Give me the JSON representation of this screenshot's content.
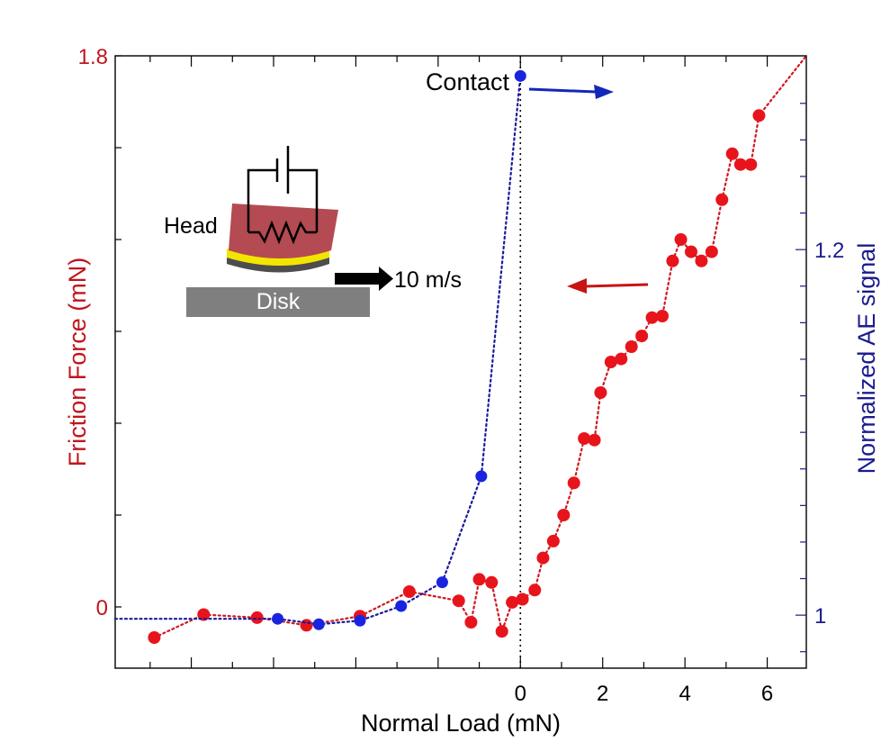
{
  "colors": {
    "friction": "#e8141c",
    "friction_line": "#cc1a22",
    "ae": "#1a24e0",
    "ae_line": "#1a1a9a",
    "left_axis_text": "#c0161d",
    "right_axis_text": "#1b1b8f",
    "head_body": "#b44a52",
    "head_coat": "#f2e600",
    "disk": "#7f7f7f",
    "arrow_blue": "#1228b8",
    "arrow_red": "#c81414"
  },
  "chart_data": {
    "type": "scatter",
    "xlabel": "Normal Load (mN)",
    "ylabel_left": "Friction Force (mN)",
    "ylabel_right": "Normalized AE signal",
    "x_ticks": [
      "0",
      "2",
      "4",
      "6"
    ],
    "x_tick_values": [
      0,
      2,
      4,
      6
    ],
    "y_left_ticks": [
      "0",
      "1.8"
    ],
    "y_left_tick_values": [
      0,
      1.8
    ],
    "y_right_ticks": [
      "1",
      "1.2"
    ],
    "y_right_tick_values": [
      1,
      1.2
    ],
    "xlim": [
      -9.85,
      6.95
    ],
    "ylim_left": [
      -0.2,
      1.8
    ],
    "ylim_right": [
      0.971,
      1.306
    ],
    "grid": false,
    "series": [
      {
        "axis": "left",
        "style": "dotted-markers",
        "points": [
          [
            -8.9,
            -0.1
          ],
          [
            -7.7,
            -0.025
          ],
          [
            -6.4,
            -0.035
          ],
          [
            -5.2,
            -0.06
          ],
          [
            -3.9,
            -0.03
          ],
          [
            -2.7,
            0.05
          ],
          [
            -1.5,
            0.02
          ],
          [
            -1.2,
            -0.05
          ],
          [
            -1.0,
            0.09
          ],
          [
            -0.7,
            0.08
          ],
          [
            -0.45,
            -0.08
          ],
          [
            -0.2,
            0.015
          ],
          [
            0.05,
            0.025
          ],
          [
            0.35,
            0.055
          ],
          [
            0.55,
            0.16
          ],
          [
            0.8,
            0.215
          ],
          [
            1.05,
            0.3
          ],
          [
            1.3,
            0.405
          ],
          [
            1.55,
            0.55
          ],
          [
            1.8,
            0.545
          ],
          [
            1.95,
            0.7
          ],
          [
            2.2,
            0.8
          ],
          [
            2.45,
            0.81
          ],
          [
            2.7,
            0.85
          ],
          [
            2.95,
            0.885
          ],
          [
            3.2,
            0.945
          ],
          [
            3.45,
            0.95
          ],
          [
            3.7,
            1.13
          ],
          [
            3.9,
            1.2
          ],
          [
            4.15,
            1.16
          ],
          [
            4.4,
            1.13
          ],
          [
            4.65,
            1.16
          ],
          [
            4.9,
            1.33
          ],
          [
            5.15,
            1.48
          ],
          [
            5.35,
            1.445
          ],
          [
            5.6,
            1.445
          ],
          [
            5.8,
            1.605
          ],
          [
            6.95,
            1.8
          ]
        ]
      },
      {
        "axis": "right",
        "style": "dotted-markers",
        "points": [
          [
            -9.85,
            0.998
          ],
          [
            -5.9,
            0.998
          ],
          [
            -4.9,
            0.995
          ],
          [
            -3.9,
            0.997
          ],
          [
            -2.9,
            1.005
          ],
          [
            -1.9,
            1.018
          ],
          [
            -0.95,
            1.076
          ],
          [
            0.0,
            1.295
          ]
        ]
      }
    ],
    "contact_x": 0,
    "annotations": {
      "contact": "Contact",
      "head": "Head",
      "disk": "Disk",
      "speed": "10 m/s"
    }
  }
}
